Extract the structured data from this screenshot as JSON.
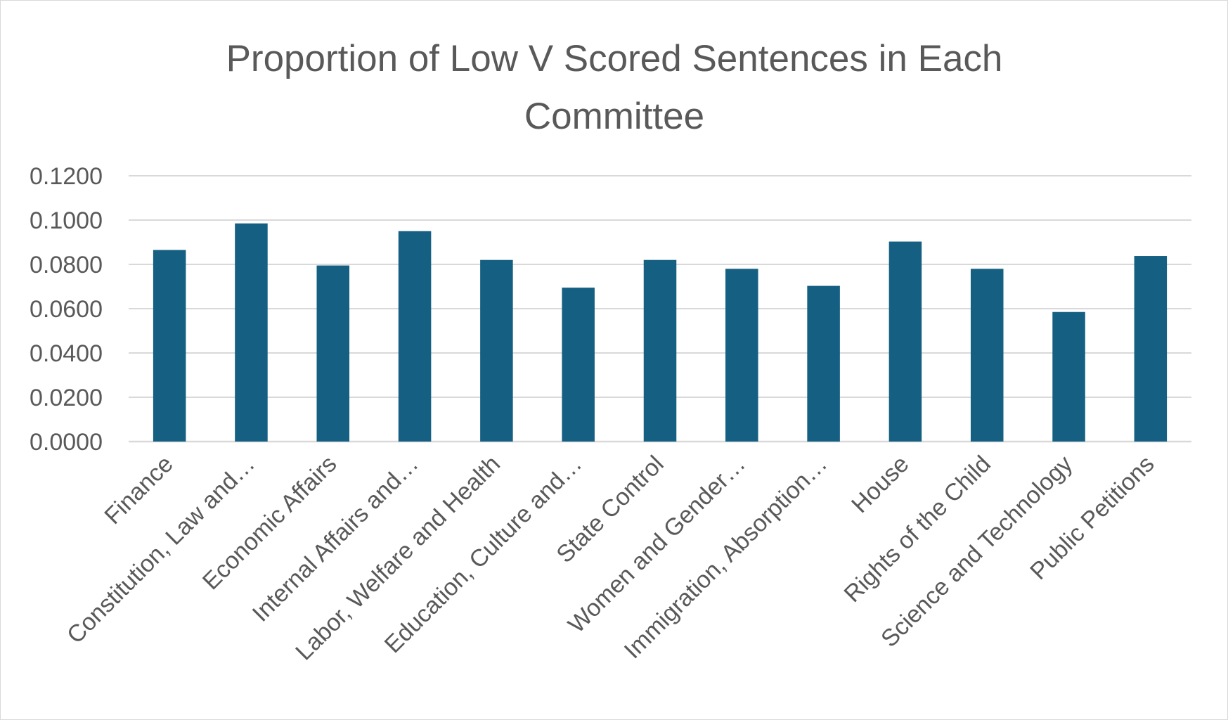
{
  "chart_data": {
    "type": "bar",
    "title": "Proportion of Low V Scored Sentences in Each Committee",
    "xlabel": "",
    "ylabel": "",
    "categories": [
      "Finance",
      "Constitution, Law and…",
      "Economic Affairs",
      "Internal Affairs and…",
      "Labor, Welfare and Health",
      "Education, Culture and…",
      "State Control",
      "Women and Gender…",
      "Immigration, Absorption…",
      "House",
      "Rights of the Child",
      "Science and Technology",
      "Public Petitions"
    ],
    "values": [
      0.0865,
      0.0985,
      0.0795,
      0.095,
      0.082,
      0.0695,
      0.082,
      0.078,
      0.0703,
      0.0903,
      0.078,
      0.0585,
      0.0838
    ],
    "ylim": [
      0,
      0.12
    ],
    "yticks": [
      0.0,
      0.02,
      0.04,
      0.06,
      0.08,
      0.1,
      0.12
    ],
    "ytick_labels": [
      "0.0000",
      "0.0200",
      "0.0400",
      "0.0600",
      "0.0800",
      "0.1000",
      "0.1200"
    ],
    "grid": true,
    "legend": "none",
    "colors": {
      "bar": "#156082",
      "grid": "#d9d9d9",
      "text": "#595959"
    }
  }
}
